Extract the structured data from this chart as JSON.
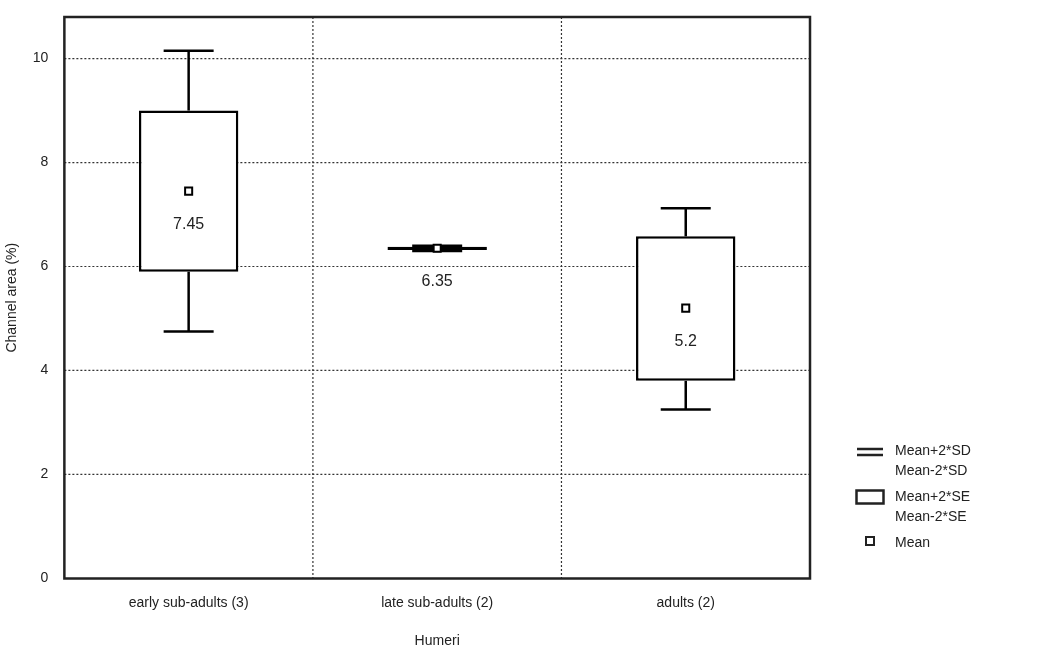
{
  "chart_data": {
    "type": "box",
    "xlabel": "Humeri",
    "ylabel": "Channel area (%)",
    "categories": [
      "early sub-adults (3)",
      "late sub-adults (2)",
      "adults (2)"
    ],
    "boxes": [
      {
        "low": 4.75,
        "q1": 5.9,
        "median": null,
        "q3": 9.0,
        "high": 10.15,
        "mean": 7.45
      },
      {
        "low": 6.3,
        "q1": 6.32,
        "median": null,
        "q3": 6.38,
        "high": 6.4,
        "mean": 6.35
      },
      {
        "low": 3.25,
        "q1": 3.8,
        "median": null,
        "q3": 6.58,
        "high": 7.12,
        "mean": 5.2
      }
    ],
    "color": "#000000",
    "ylim": [
      0,
      10.8
    ],
    "yticks": [
      0,
      2,
      4,
      6,
      8,
      10
    ],
    "grid": true,
    "marker": "square",
    "annotations": [
      "7.45",
      "6.35",
      "5.2",
      "Mean+2*SD\nMean-2*SD",
      "Mean+2*SE\nMean-2*SE",
      "Mean"
    ]
  }
}
